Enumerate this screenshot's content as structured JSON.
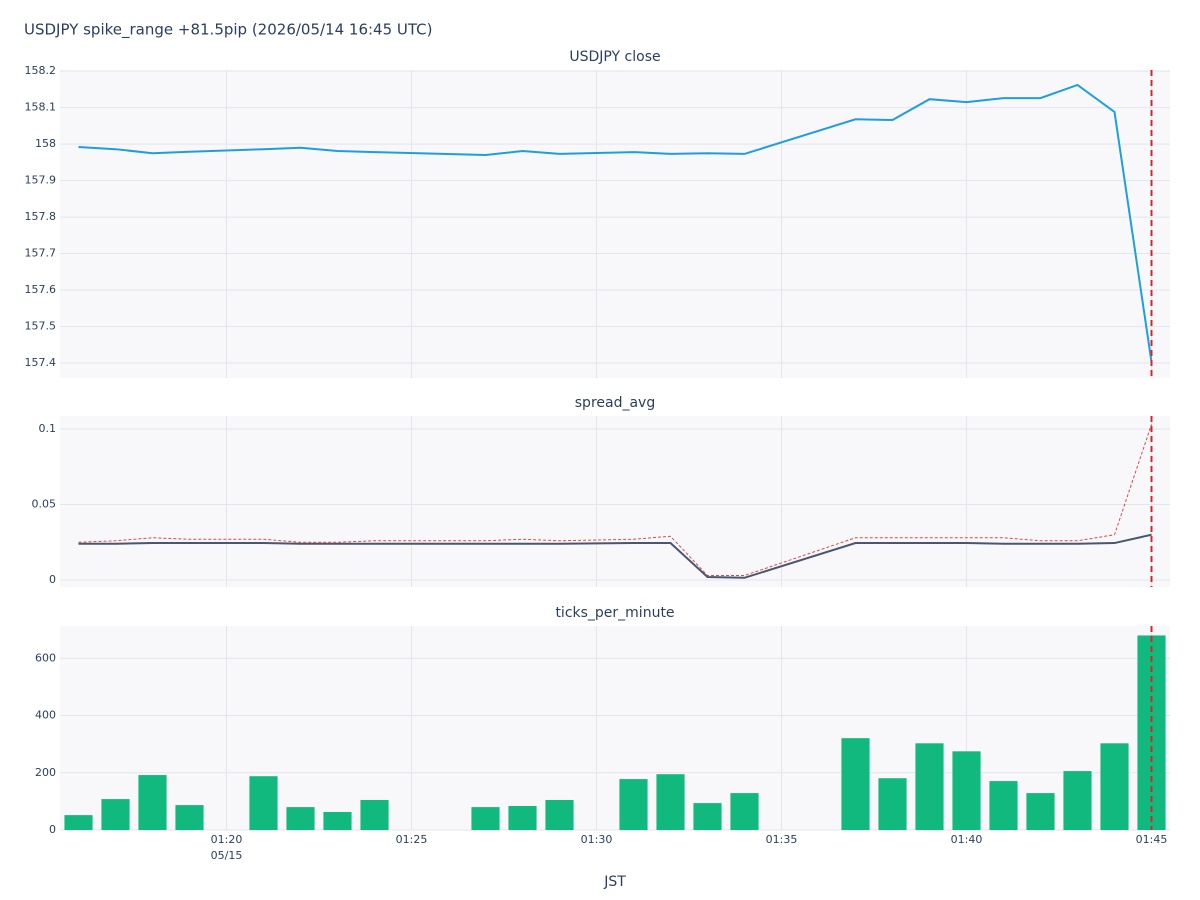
{
  "chart_data": {
    "type": "subplots",
    "title": "USDJPY spike_range +81.5pip (2026/05/14 16:45 UTC)",
    "x_label": "JST",
    "x": [
      "01:16",
      "01:17",
      "01:18",
      "01:19",
      "01:21",
      "01:22",
      "01:23",
      "01:24",
      "01:27",
      "01:28",
      "01:29",
      "01:31",
      "01:32",
      "01:33",
      "01:34",
      "01:37",
      "01:38",
      "01:39",
      "01:40",
      "01:41",
      "01:42",
      "01:43",
      "01:44",
      "01:45"
    ],
    "xlim": [
      "01:15:30",
      "01:45:30"
    ],
    "xticks": [
      "01:20",
      "01:25",
      "01:30",
      "01:35",
      "01:40",
      "01:45"
    ],
    "x_date_label": "05/15",
    "event_x": "01:45",
    "event_color": "#d62728",
    "grid": true,
    "panels": [
      {
        "type": "line",
        "title": "USDJPY close",
        "series": [
          {
            "color": "#1f9ede",
            "dash": "solid",
            "values": [
              157.992,
              157.986,
              157.975,
              157.979,
              157.986,
              157.99,
              157.981,
              157.978,
              157.97,
              157.981,
              157.973,
              157.978,
              157.973,
              157.975,
              157.973,
              158.068,
              158.066,
              158.123,
              158.115,
              158.126,
              158.126,
              158.162,
              158.088,
              157.403
            ]
          }
        ],
        "ylim": [
          157.359,
          158.203
        ],
        "yticks": [
          157.4,
          157.5,
          157.6,
          157.7,
          157.8,
          157.9,
          158,
          158.1,
          158.2
        ]
      },
      {
        "type": "line",
        "title": "spread_avg",
        "series": [
          {
            "color": "#4a5670",
            "dash": "solid",
            "values": [
              0.024,
              0.024,
              0.0245,
              0.0245,
              0.0245,
              0.024,
              0.024,
              0.024,
              0.024,
              0.024,
              0.024,
              0.0245,
              0.0245,
              0.002,
              0.0015,
              0.0245,
              0.0245,
              0.0245,
              0.0245,
              0.024,
              0.024,
              0.024,
              0.0245,
              0.03
            ]
          },
          {
            "color": "#e04848",
            "dash": "dot",
            "values": [
              0.025,
              0.026,
              0.028,
              0.027,
              0.027,
              0.025,
              0.025,
              0.026,
              0.026,
              0.027,
              0.026,
              0.027,
              0.029,
              0.003,
              0.003,
              0.028,
              0.028,
              0.028,
              0.028,
              0.028,
              0.026,
              0.026,
              0.03,
              0.103
            ]
          }
        ],
        "ylim": [
          -0.0046,
          0.1086
        ],
        "yticks": [
          0,
          0.05,
          0.1
        ]
      },
      {
        "type": "bar",
        "title": "ticks_per_minute",
        "series": [
          {
            "color": "#12b97f",
            "values": [
              52,
              108,
              192,
              87,
              188,
              80,
              63,
              105,
              80,
              84,
              105,
              178,
              195,
              94,
              129,
              321,
              181,
              303,
              275,
              171,
              129,
              206,
              303,
              680
            ]
          }
        ],
        "ylim": [
          0,
          713
        ],
        "yticks": [
          0,
          200,
          400,
          600
        ]
      }
    ]
  }
}
